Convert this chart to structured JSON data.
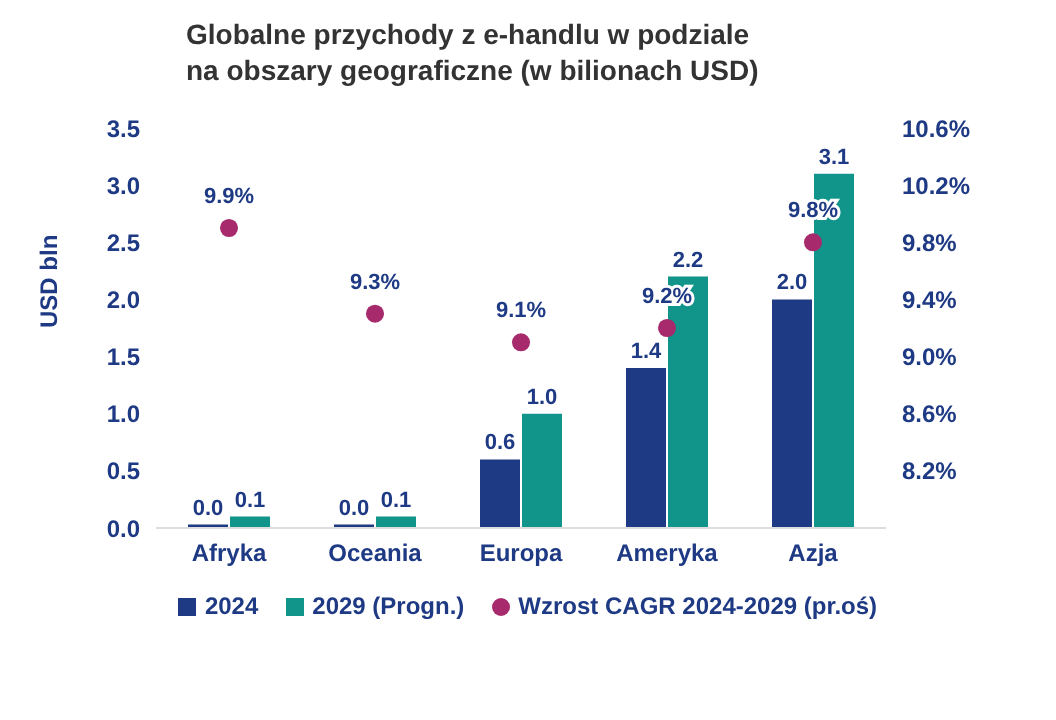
{
  "chart_data": {
    "type": "bar",
    "title": "Globalne przychody z e-handlu w podziale na obszary geograficzne (w bilionach USD)",
    "ylabel": "USD bln",
    "categories": [
      "Afryka",
      "Oceania",
      "Europa",
      "Ameryka",
      "Azja"
    ],
    "series": [
      {
        "name": "2024",
        "color": "#1f3a84",
        "values": [
          0.03,
          0.03,
          0.6,
          1.4,
          2.0
        ],
        "value_labels": [
          "0.0",
          "0.0",
          "0.6",
          "1.4",
          "2.0"
        ]
      },
      {
        "name": "2029 (Progn.)",
        "color": "#11958a",
        "values": [
          0.1,
          0.1,
          1.0,
          2.2,
          3.1
        ],
        "value_labels": [
          "0.1",
          "0.1",
          "1.0",
          "2.2",
          "3.1"
        ]
      },
      {
        "name": "Wzrost CAGR 2024-2029 (pr.oś)",
        "type": "scatter",
        "axis": "y2",
        "color": "#a62a6c",
        "values": [
          9.9,
          9.3,
          9.1,
          9.2,
          9.8
        ],
        "value_labels": [
          "9.9%",
          "9.3%",
          "9.1%",
          "9.2%",
          "9.8%"
        ]
      }
    ],
    "ylim": [
      0,
      3.5
    ],
    "yticks": [
      {
        "value": 0,
        "label": "0.0"
      },
      0.5,
      {
        "value": 1,
        "label": "1.0"
      },
      1.5,
      {
        "value": 2,
        "label": "2.0"
      },
      2.5,
      {
        "value": 3,
        "label": "3.0"
      },
      3.5
    ],
    "y2lim": [
      7.8,
      10.6
    ],
    "y2ticks": [
      {
        "value": 8.2,
        "label": "8.2%"
      },
      {
        "value": 8.6,
        "label": "8.6%"
      },
      {
        "value": 9.0,
        "label": "9.0%"
      },
      {
        "value": 9.4,
        "label": "9.4%"
      },
      {
        "value": 9.8,
        "label": "9.8%"
      },
      {
        "value": 10.2,
        "label": "10.2%"
      },
      {
        "value": 10.6,
        "label": "10.6%"
      }
    ],
    "legend": "bottom"
  }
}
